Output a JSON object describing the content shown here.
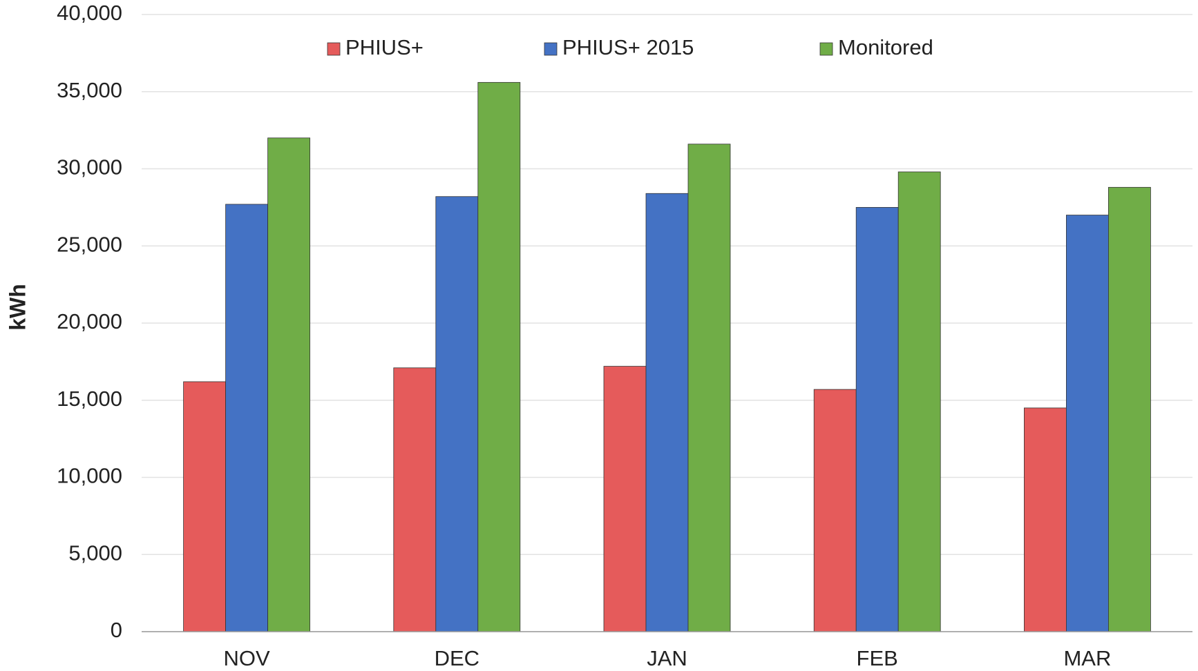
{
  "chart_data": {
    "type": "bar",
    "y_label": "kWh",
    "categories": [
      "NOV",
      "DEC",
      "JAN",
      "FEB",
      "MAR"
    ],
    "series": [
      {
        "name": "PHIUS+",
        "color": "#e55b5b",
        "values": [
          16200,
          17100,
          17200,
          15700,
          14500
        ]
      },
      {
        "name": "PHIUS+ 2015",
        "color": "#4472c4",
        "values": [
          27700,
          28200,
          28400,
          27500,
          27000
        ]
      },
      {
        "name": "Monitored",
        "color": "#70ad47",
        "values": [
          32000,
          35600,
          31600,
          29800,
          28800
        ]
      }
    ],
    "ylim": [
      0,
      40000
    ],
    "yticks": [
      0,
      {
        "value": 5000,
        "label": "5,000"
      },
      {
        "value": 10000,
        "label": "10,000"
      },
      {
        "value": 15000,
        "label": "15,000"
      },
      {
        "value": 20000,
        "label": "20,000"
      },
      {
        "value": 25000,
        "label": "25,000"
      },
      {
        "value": 30000,
        "label": "30,000"
      },
      {
        "value": 35000,
        "label": "35,000"
      },
      {
        "value": 40000,
        "label": "40,000"
      }
    ],
    "grid": true,
    "legend": "top"
  }
}
